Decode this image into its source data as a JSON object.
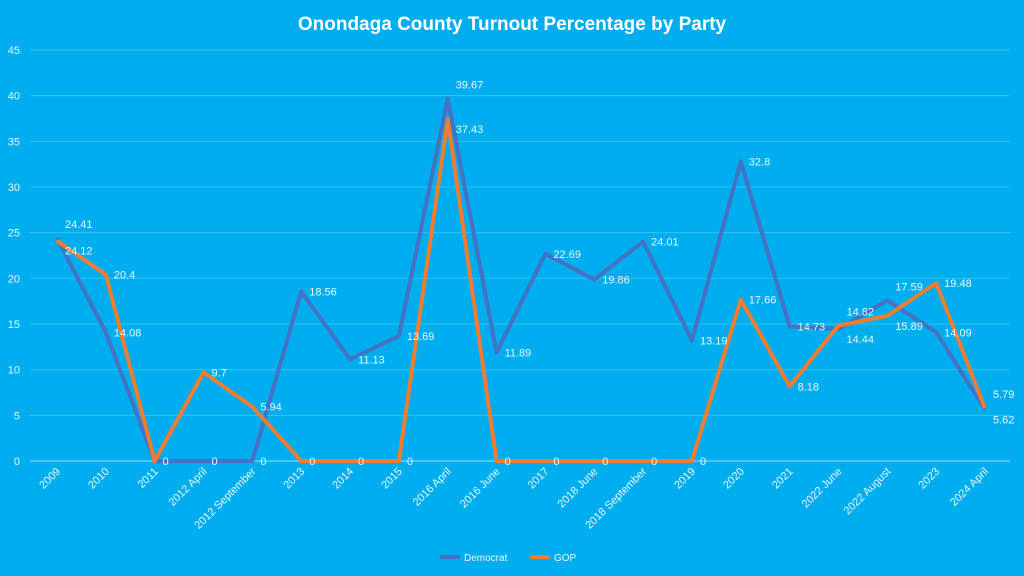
{
  "chart_data": {
    "type": "line",
    "title": "Onondaga County Turnout Percentage by Party",
    "xlabel": "",
    "ylabel": "",
    "ylim": [
      0,
      45
    ],
    "yticks": [
      0,
      5,
      10,
      15,
      20,
      25,
      30,
      35,
      40,
      45
    ],
    "grid": true,
    "legend_position": "bottom",
    "categories": [
      "2009",
      "2010",
      "2011",
      "2012 April",
      "2012 September",
      "2013",
      "2014",
      "2015",
      "2016 April",
      "2016 June",
      "2017",
      "2018 June",
      "2018 September",
      "2019",
      "2020",
      "2021",
      "2022 June",
      "2022 August",
      "2023",
      "2024 April"
    ],
    "series": [
      {
        "name": "Democrat",
        "color": "#4472c4",
        "values": [
          24.41,
          14.08,
          0,
          0,
          0,
          18.56,
          11.13,
          13.69,
          39.67,
          11.89,
          22.69,
          19.86,
          24.01,
          13.19,
          32.8,
          14.73,
          14.44,
          17.59,
          14.09,
          5.62
        ]
      },
      {
        "name": "GOP",
        "color": "#ed7d31",
        "values": [
          24.12,
          20.4,
          0,
          9.7,
          5.94,
          0,
          0,
          0,
          37.43,
          0,
          0,
          0,
          0,
          0,
          17.66,
          8.18,
          14.82,
          15.89,
          19.48,
          5.79
        ]
      }
    ]
  }
}
